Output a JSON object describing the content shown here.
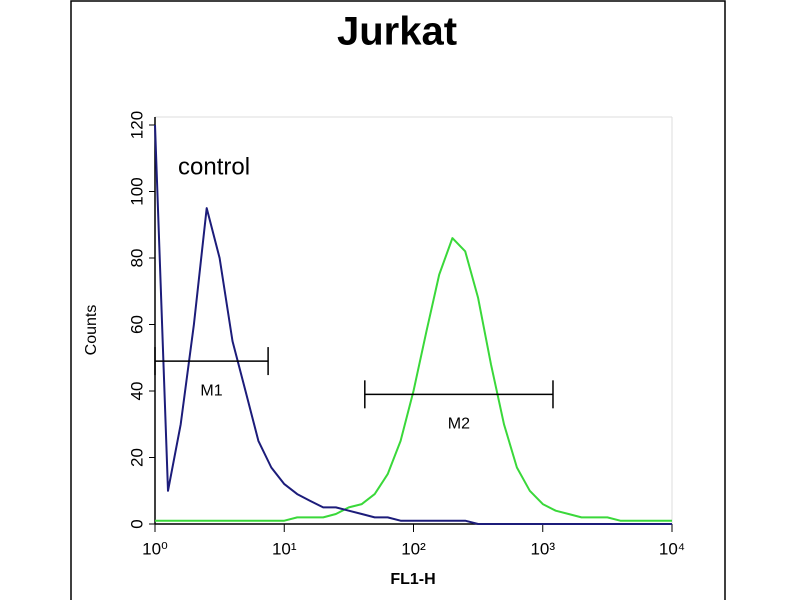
{
  "chart_data": {
    "type": "line",
    "title": "Jurkat",
    "xlabel": "FL1-H",
    "ylabel": "Counts",
    "xscale": "log",
    "x": [
      1,
      1.26,
      1.58,
      2,
      2.51,
      3.16,
      3.98,
      5.01,
      6.31,
      7.94,
      10,
      12.6,
      15.8,
      20,
      25.1,
      31.6,
      39.8,
      50.1,
      63.1,
      79.4,
      100,
      126,
      158,
      200,
      251,
      316,
      398,
      501,
      631,
      794,
      1000,
      1259,
      1585,
      1995,
      2512,
      3162,
      3981,
      5012,
      6310,
      7943,
      10000
    ],
    "series": [
      {
        "name": "control",
        "color": "#1c1c7a",
        "values": [
          120,
          10,
          30,
          60,
          95,
          80,
          55,
          40,
          25,
          17,
          12,
          9,
          7,
          5,
          5,
          4,
          3,
          2,
          2,
          1,
          1,
          1,
          1,
          1,
          1,
          0,
          0,
          0,
          0,
          0,
          0,
          0,
          0,
          0,
          0,
          0,
          0,
          0,
          0,
          0,
          0
        ]
      },
      {
        "color": "#3ad83a",
        "values": [
          1,
          1,
          1,
          1,
          1,
          1,
          1,
          1,
          1,
          1,
          1,
          2,
          2,
          2,
          3,
          5,
          6,
          9,
          15,
          25,
          40,
          58,
          75,
          86,
          82,
          68,
          48,
          30,
          17,
          10,
          6,
          4,
          3,
          2,
          2,
          2,
          1,
          1,
          1,
          1,
          1
        ]
      }
    ],
    "markers": [
      {
        "label": "M1",
        "x": [
          1,
          7.5
        ],
        "y": 49
      },
      {
        "label": "M2",
        "x": [
          42,
          1200
        ],
        "y": 39
      }
    ],
    "xlim": [
      1,
      10000
    ],
    "xticks": [
      {
        "value": 1,
        "label": "10⁰"
      },
      {
        "value": 10,
        "label": "10¹"
      },
      {
        "value": 100,
        "label": "10²"
      },
      {
        "value": 1000,
        "label": "10³"
      },
      {
        "value": 10000,
        "label": "10⁴"
      }
    ],
    "ylim": [
      0,
      120
    ],
    "yticks": [
      0,
      20,
      40,
      60,
      80,
      100,
      120
    ]
  }
}
